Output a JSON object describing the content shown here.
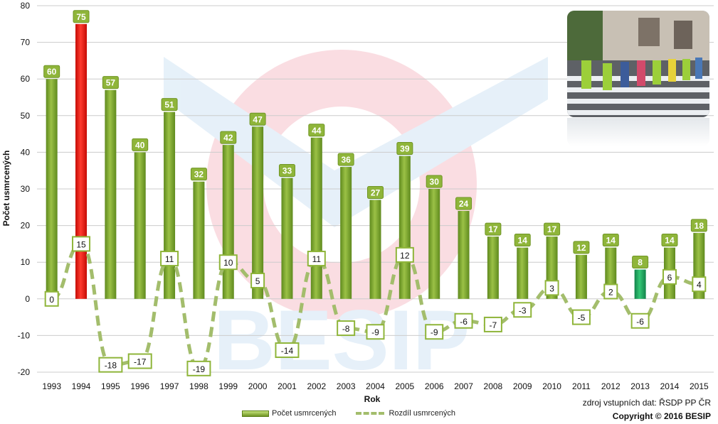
{
  "chart_data": {
    "type": "bar",
    "xlabel": "Rok",
    "ylabel": "Počet usmrcených",
    "ylim": [
      -20,
      80
    ],
    "yticks": [
      -20,
      -10,
      0,
      10,
      20,
      30,
      40,
      50,
      60,
      70,
      80
    ],
    "categories": [
      "1993",
      "1994",
      "1995",
      "1996",
      "1997",
      "1998",
      "1999",
      "2000",
      "2001",
      "2002",
      "2003",
      "2004",
      "2005",
      "2006",
      "2007",
      "2008",
      "2009",
      "2010",
      "2011",
      "2012",
      "2013",
      "2014",
      "2015"
    ],
    "series": [
      {
        "name": "Počet usmrcených",
        "kind": "bar",
        "values": [
          60,
          75,
          57,
          40,
          51,
          32,
          42,
          47,
          33,
          44,
          36,
          27,
          39,
          30,
          24,
          17,
          14,
          17,
          12,
          14,
          8,
          14,
          18
        ]
      },
      {
        "name": "Rozdíl usmrcených",
        "kind": "dashed-line",
        "values": [
          0,
          15,
          -18,
          -17,
          11,
          -19,
          10,
          5,
          -14,
          11,
          -8,
          -9,
          12,
          -9,
          -6,
          -7,
          -3,
          3,
          -5,
          2,
          -6,
          6,
          4
        ]
      }
    ],
    "highlight": {
      "1994": "#e8140c",
      "2013": "#1fa35a"
    },
    "watermark": "BESIP"
  },
  "colors": {
    "bar": "#7ba12e",
    "bar_label_bg": "#8fb53a",
    "line": "#a3bd6c",
    "grid": "#cccccc"
  },
  "source_note": "zdroj vstupních dat: ŘSDP PP ČR",
  "copyright": "Copyright © 2016 BESIP"
}
